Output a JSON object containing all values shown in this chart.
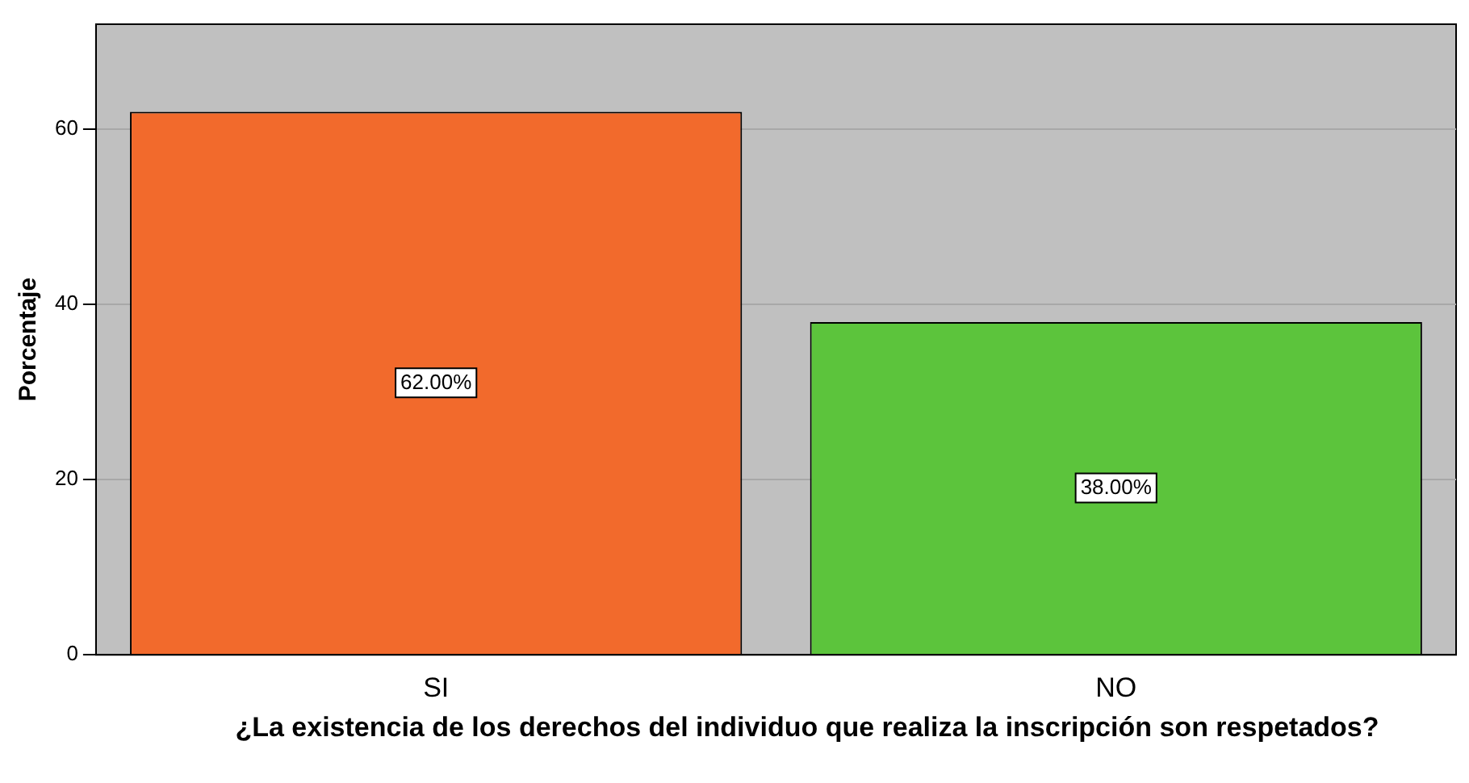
{
  "chart_data": {
    "type": "bar",
    "xlabel": "¿La existencia de los derechos del individuo que realiza la inscripción son respetados?",
    "ylabel": "Porcentaje",
    "categories": [
      "SI",
      "NO"
    ],
    "values": [
      62,
      38
    ],
    "colors": [
      "#f26a2c",
      "#5cc43c"
    ],
    "value_labels": [
      "62.00%",
      "38.00%"
    ],
    "ylim": [
      0,
      72
    ],
    "yticks": [
      0,
      20,
      40,
      60
    ],
    "grid": "y",
    "legend": false
  }
}
